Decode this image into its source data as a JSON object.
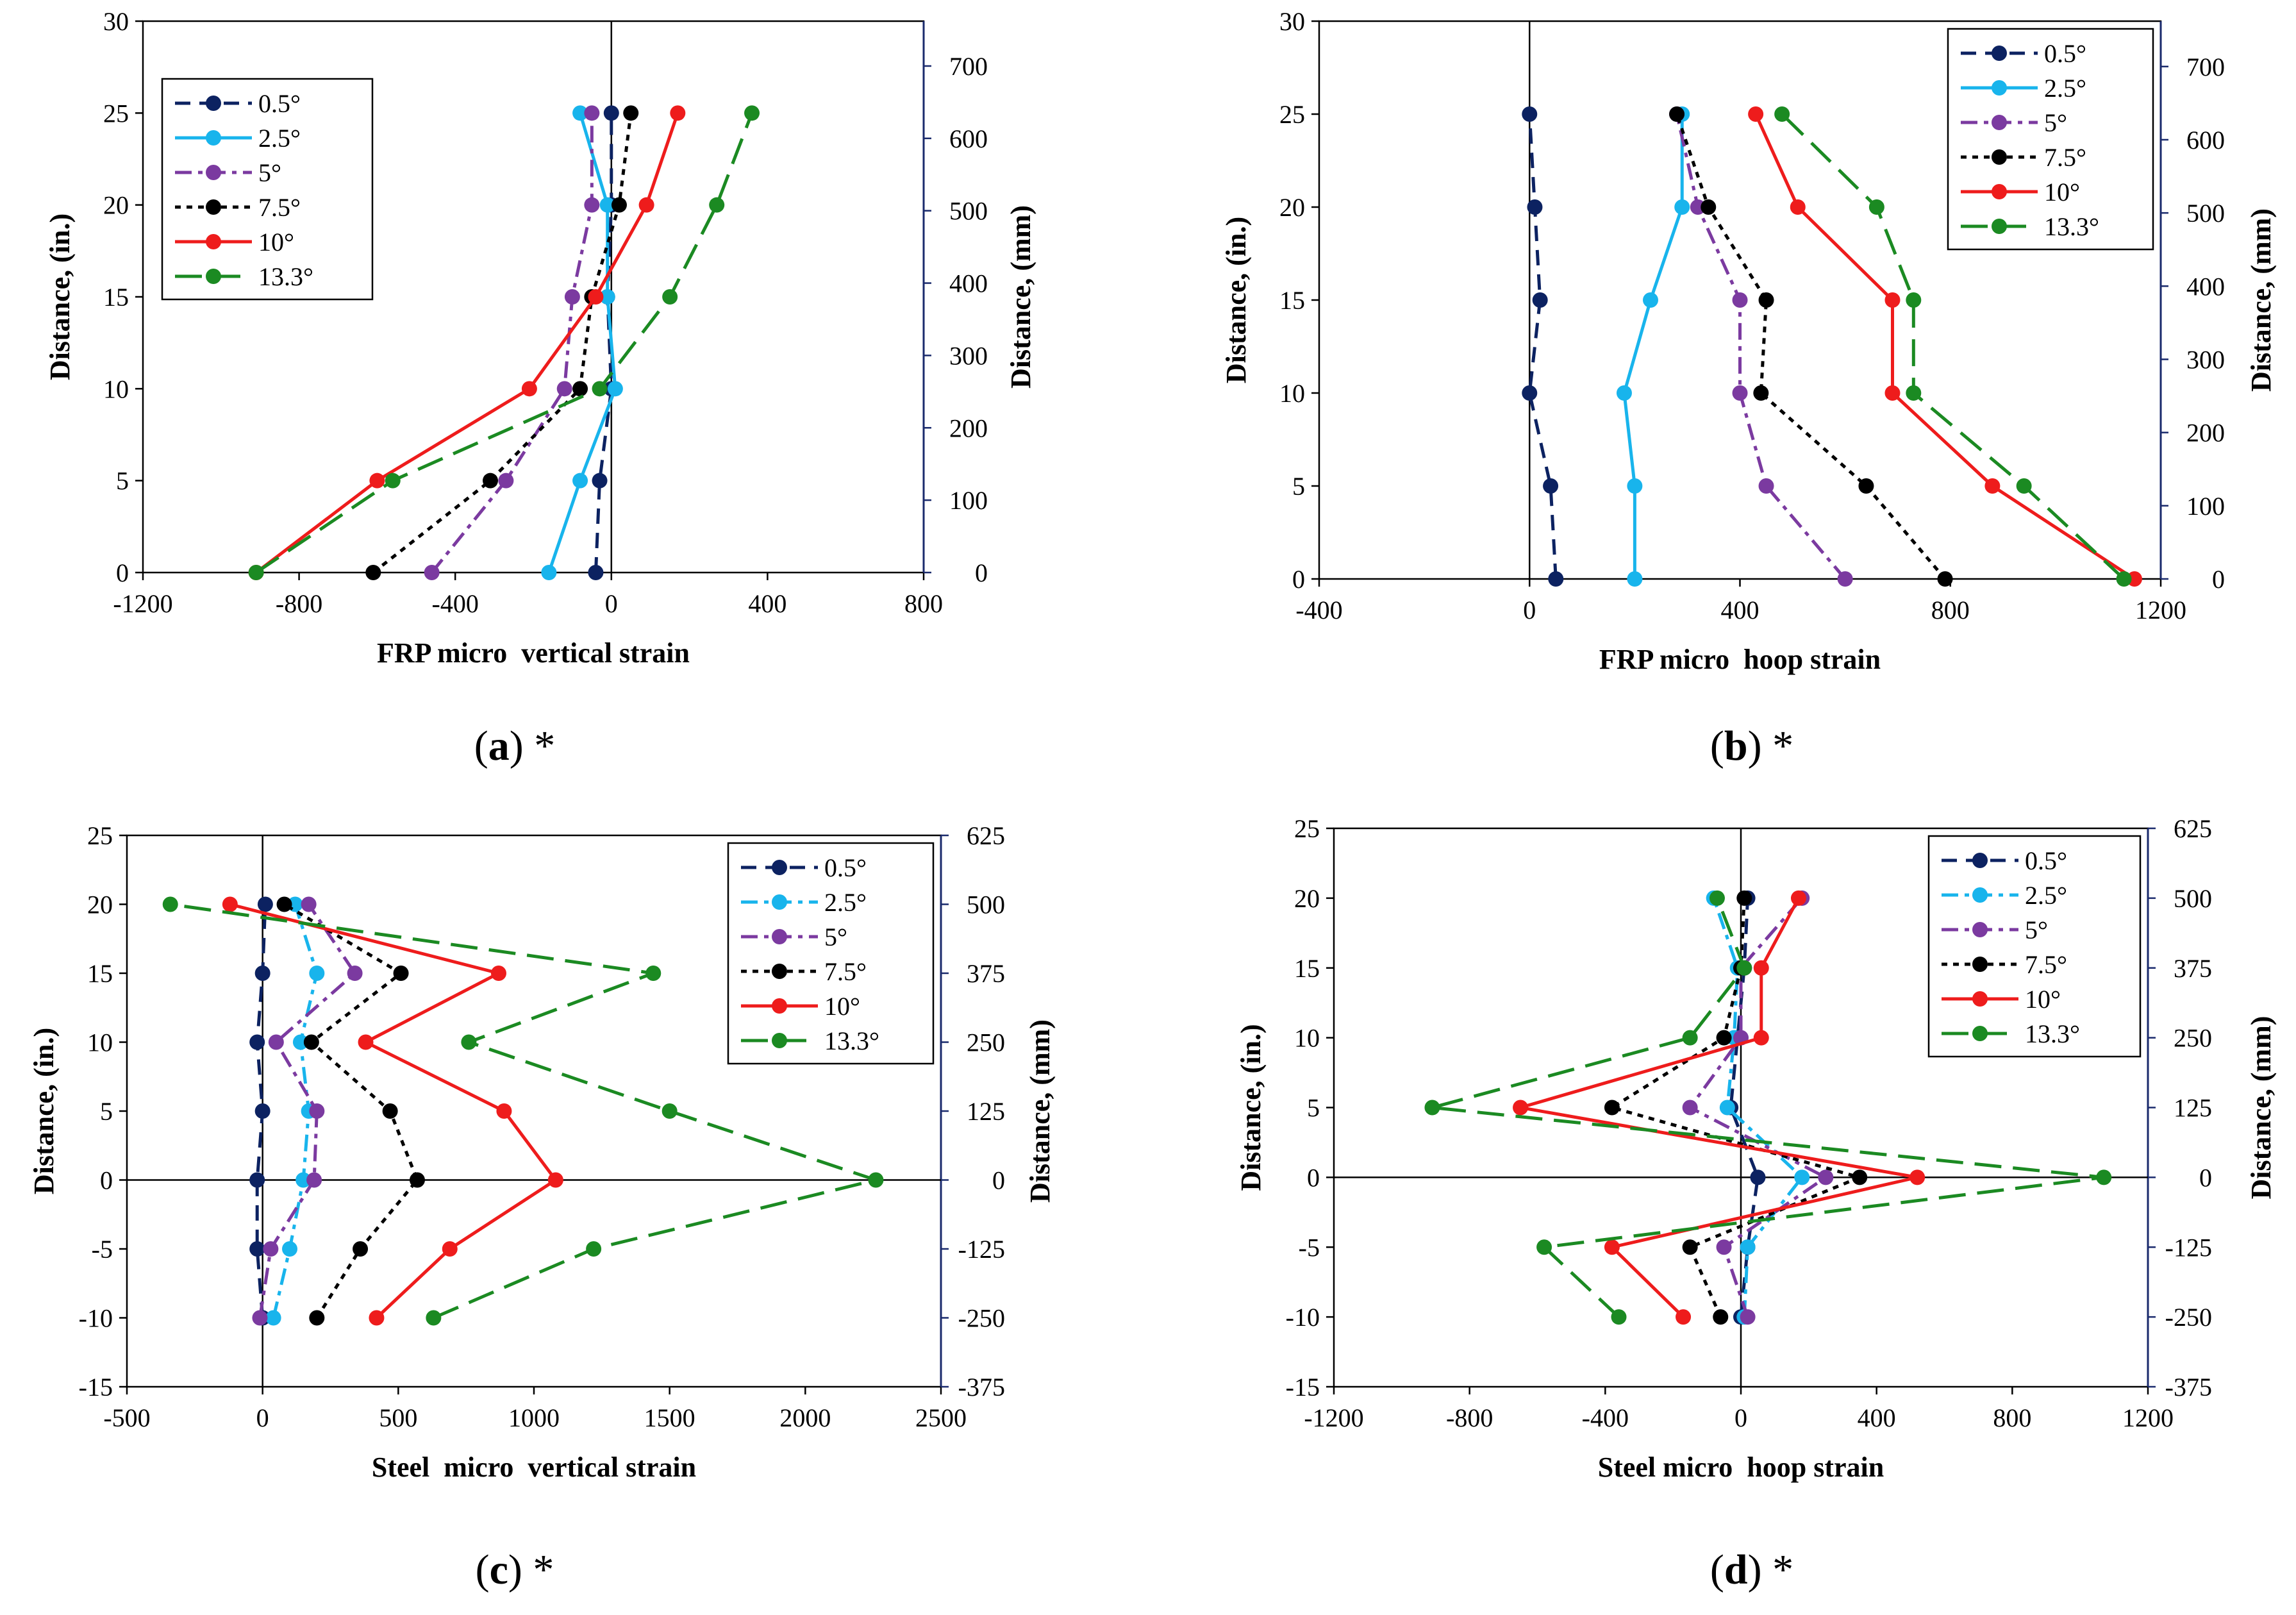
{
  "colors": {
    "0.5°": "#0c2261",
    "2.5°": "#18b4ec",
    "5°": "#7b3aa0",
    "7.5°": "#000000",
    "10°": "#ee1c1c",
    "13.3°": "#1b8a22"
  },
  "chart_data": [
    {
      "type": "line",
      "id": "a",
      "caption": {
        "letter": "a",
        "prefix": "(",
        "suffix": ") *"
      },
      "xlabel": "FRP micro  vertical strain",
      "ylabel": "Distance, (in.)",
      "y2label": "Distance, (mm)",
      "xlim": [
        -1200,
        800
      ],
      "ylim": [
        0,
        30
      ],
      "xticks": [
        "-1200",
        "-800",
        "-400",
        "0",
        "400",
        "800"
      ],
      "yticks": [
        "0",
        "5",
        "10",
        "15",
        "20",
        "25",
        "30"
      ],
      "y2ticks": [
        "0",
        "100",
        "200",
        "300",
        "400",
        "500",
        "600",
        "700"
      ],
      "y2_values": [
        0,
        100,
        200,
        300,
        400,
        500,
        600,
        700
      ],
      "y2_scale": 25.4,
      "legend_position": "top-left",
      "series": [
        {
          "name": "0.5°",
          "style": "dash",
          "points": [
            [
              -40,
              0
            ],
            [
              -30,
              5
            ],
            [
              0,
              10
            ],
            [
              -10,
              15
            ],
            [
              0,
              20
            ],
            [
              0,
              25
            ]
          ]
        },
        {
          "name": "2.5°",
          "style": "solid",
          "points": [
            [
              -160,
              0
            ],
            [
              -80,
              5
            ],
            [
              10,
              10
            ],
            [
              -10,
              15
            ],
            [
              -10,
              20
            ],
            [
              -80,
              25
            ]
          ]
        },
        {
          "name": "5°",
          "style": "dashdot",
          "points": [
            [
              -460,
              0
            ],
            [
              -270,
              5
            ],
            [
              -120,
              10
            ],
            [
              -100,
              15
            ],
            [
              -50,
              20
            ],
            [
              -50,
              25
            ]
          ]
        },
        {
          "name": "7.5°",
          "style": "dot",
          "points": [
            [
              -610,
              0
            ],
            [
              -310,
              5
            ],
            [
              -80,
              10
            ],
            [
              -50,
              15
            ],
            [
              20,
              20
            ],
            [
              50,
              25
            ]
          ]
        },
        {
          "name": "10°",
          "style": "solid",
          "points": [
            [
              -910,
              0
            ],
            [
              -600,
              5
            ],
            [
              -210,
              10
            ],
            [
              -40,
              15
            ],
            [
              90,
              20
            ],
            [
              170,
              25
            ]
          ]
        },
        {
          "name": "13.3°",
          "style": "longdash",
          "points": [
            [
              -910,
              0
            ],
            [
              -560,
              5
            ],
            [
              -30,
              10
            ],
            [
              150,
              15
            ],
            [
              270,
              20
            ],
            [
              360,
              25
            ]
          ]
        }
      ]
    },
    {
      "type": "line",
      "id": "b",
      "caption": {
        "letter": "b",
        "prefix": "(",
        "suffix": ") *"
      },
      "xlabel": "FRP micro  hoop strain",
      "ylabel": "Distance, (in.)",
      "y2label": "Distance, (mm)",
      "xlim": [
        -400,
        1200
      ],
      "ylim": [
        0,
        30
      ],
      "xticks": [
        "-400",
        "0",
        "400",
        "800",
        "1200"
      ],
      "yticks": [
        "0",
        "5",
        "10",
        "15",
        "20",
        "25",
        "30"
      ],
      "y2ticks": [
        "0",
        "100",
        "200",
        "300",
        "400",
        "500",
        "600",
        "700"
      ],
      "y2_values": [
        0,
        100,
        200,
        300,
        400,
        500,
        600,
        700
      ],
      "y2_scale": 25.4,
      "legend_position": "top-right",
      "series": [
        {
          "name": "0.5°",
          "style": "dash",
          "points": [
            [
              50,
              0
            ],
            [
              40,
              5
            ],
            [
              0,
              10
            ],
            [
              20,
              15
            ],
            [
              10,
              20
            ],
            [
              0,
              25
            ]
          ]
        },
        {
          "name": "2.5°",
          "style": "solid",
          "points": [
            [
              200,
              0
            ],
            [
              200,
              5
            ],
            [
              180,
              10
            ],
            [
              230,
              15
            ],
            [
              290,
              20
            ],
            [
              290,
              25
            ]
          ]
        },
        {
          "name": "5°",
          "style": "dashdot",
          "points": [
            [
              600,
              0
            ],
            [
              450,
              5
            ],
            [
              400,
              10
            ],
            [
              400,
              15
            ],
            [
              320,
              20
            ],
            [
              280,
              25
            ]
          ]
        },
        {
          "name": "7.5°",
          "style": "dot",
          "points": [
            [
              790,
              0
            ],
            [
              640,
              5
            ],
            [
              440,
              10
            ],
            [
              450,
              15
            ],
            [
              340,
              20
            ],
            [
              280,
              25
            ]
          ]
        },
        {
          "name": "10°",
          "style": "solid",
          "points": [
            [
              1150,
              0
            ],
            [
              880,
              5
            ],
            [
              690,
              10
            ],
            [
              690,
              15
            ],
            [
              510,
              20
            ],
            [
              430,
              25
            ]
          ]
        },
        {
          "name": "13.3°",
          "style": "longdash",
          "points": [
            [
              1130,
              0
            ],
            [
              940,
              5
            ],
            [
              730,
              10
            ],
            [
              730,
              15
            ],
            [
              660,
              20
            ],
            [
              480,
              25
            ]
          ]
        }
      ]
    },
    {
      "type": "line",
      "id": "c",
      "caption": {
        "letter": "c",
        "prefix": "(",
        "suffix": ") *"
      },
      "xlabel": "Steel  micro  vertical strain",
      "ylabel": "Distance, (in.)",
      "y2label": "Distance, (mm)",
      "xlim": [
        -500,
        2500
      ],
      "ylim": [
        -15,
        25
      ],
      "xticks": [
        "-500",
        "0",
        "500",
        "1000",
        "1500",
        "2000",
        "2500"
      ],
      "yticks": [
        "-15",
        "-10",
        "-5",
        "0",
        "5",
        "10",
        "15",
        "20",
        "25"
      ],
      "y2ticks": [
        "-375",
        "-250",
        "-125",
        "0",
        "125",
        "250",
        "375",
        "500",
        "625"
      ],
      "y2_values": [
        -375,
        -250,
        -125,
        0,
        125,
        250,
        375,
        500,
        625
      ],
      "y2_scale": 25,
      "legend_position": "top-right",
      "series": [
        {
          "name": "0.5°",
          "style": "dash",
          "points": [
            [
              0,
              -10
            ],
            [
              -20,
              -5
            ],
            [
              -20,
              0
            ],
            [
              0,
              5
            ],
            [
              -20,
              10
            ],
            [
              0,
              15
            ],
            [
              10,
              20
            ]
          ]
        },
        {
          "name": "2.5°",
          "style": "dashdot",
          "points": [
            [
              40,
              -10
            ],
            [
              100,
              -5
            ],
            [
              150,
              0
            ],
            [
              170,
              5
            ],
            [
              140,
              10
            ],
            [
              200,
              15
            ],
            [
              120,
              20
            ]
          ]
        },
        {
          "name": "5°",
          "style": "dashdot",
          "points": [
            [
              -10,
              -10
            ],
            [
              30,
              -5
            ],
            [
              190,
              0
            ],
            [
              200,
              5
            ],
            [
              50,
              10
            ],
            [
              340,
              15
            ],
            [
              170,
              20
            ]
          ]
        },
        {
          "name": "7.5°",
          "style": "dot",
          "points": [
            [
              200,
              -10
            ],
            [
              360,
              -5
            ],
            [
              570,
              0
            ],
            [
              470,
              5
            ],
            [
              180,
              10
            ],
            [
              510,
              15
            ],
            [
              80,
              20
            ]
          ]
        },
        {
          "name": "10°",
          "style": "solid",
          "points": [
            [
              420,
              -10
            ],
            [
              690,
              -5
            ],
            [
              1080,
              0
            ],
            [
              890,
              5
            ],
            [
              380,
              10
            ],
            [
              870,
              15
            ],
            [
              -120,
              20
            ]
          ]
        },
        {
          "name": "13.3°",
          "style": "longdash",
          "points": [
            [
              630,
              -10
            ],
            [
              1220,
              -5
            ],
            [
              2260,
              0
            ],
            [
              1500,
              5
            ],
            [
              760,
              10
            ],
            [
              1440,
              15
            ],
            [
              -340,
              20
            ]
          ]
        }
      ]
    },
    {
      "type": "line",
      "id": "d",
      "caption": {
        "letter": "d",
        "prefix": "(",
        "suffix": ") *"
      },
      "xlabel": "Steel micro  hoop strain",
      "ylabel": "Distance, (in.)",
      "y2label": "Distance, (mm)",
      "xlim": [
        -1200,
        1200
      ],
      "ylim": [
        -15,
        25
      ],
      "xticks": [
        "-1200",
        "-800",
        "-400",
        "0",
        "400",
        "800",
        "1200"
      ],
      "yticks": [
        "-15",
        "-10",
        "-5",
        "0",
        "5",
        "10",
        "15",
        "20",
        "25"
      ],
      "y2ticks": [
        "-375",
        "-250",
        "-125",
        "0",
        "125",
        "250",
        "375",
        "500",
        "625"
      ],
      "y2_values": [
        -375,
        -250,
        -125,
        0,
        125,
        250,
        375,
        500,
        625
      ],
      "y2_scale": 25,
      "legend_position": "top-right",
      "series": [
        {
          "name": "0.5°",
          "style": "dash",
          "points": [
            [
              0,
              -10
            ],
            [
              20,
              -5
            ],
            [
              50,
              0
            ],
            [
              -30,
              5
            ],
            [
              -10,
              10
            ],
            [
              10,
              15
            ],
            [
              20,
              20
            ]
          ]
        },
        {
          "name": "2.5°",
          "style": "dashdot",
          "points": [
            [
              10,
              -10
            ],
            [
              20,
              -5
            ],
            [
              180,
              0
            ],
            [
              -40,
              5
            ],
            [
              -20,
              10
            ],
            [
              -10,
              15
            ],
            [
              -80,
              20
            ]
          ]
        },
        {
          "name": "5°",
          "style": "dashdot",
          "points": [
            [
              20,
              -10
            ],
            [
              -50,
              -5
            ],
            [
              250,
              0
            ],
            [
              -150,
              5
            ],
            [
              0,
              10
            ],
            [
              0,
              15
            ],
            [
              180,
              20
            ]
          ]
        },
        {
          "name": "7.5°",
          "style": "dot",
          "points": [
            [
              -60,
              -10
            ],
            [
              -150,
              -5
            ],
            [
              350,
              0
            ],
            [
              -380,
              5
            ],
            [
              -50,
              10
            ],
            [
              0,
              15
            ],
            [
              10,
              20
            ]
          ]
        },
        {
          "name": "10°",
          "style": "solid",
          "points": [
            [
              -170,
              -10
            ],
            [
              -380,
              -5
            ],
            [
              520,
              0
            ],
            [
              -650,
              5
            ],
            [
              60,
              10
            ],
            [
              60,
              15
            ],
            [
              170,
              20
            ]
          ]
        },
        {
          "name": "13.3°",
          "style": "longdash",
          "points": [
            [
              -360,
              -10
            ],
            [
              -580,
              -5
            ],
            [
              1070,
              0
            ],
            [
              -910,
              5
            ],
            [
              -150,
              10
            ],
            [
              10,
              15
            ],
            [
              -70,
              20
            ]
          ]
        }
      ]
    }
  ]
}
